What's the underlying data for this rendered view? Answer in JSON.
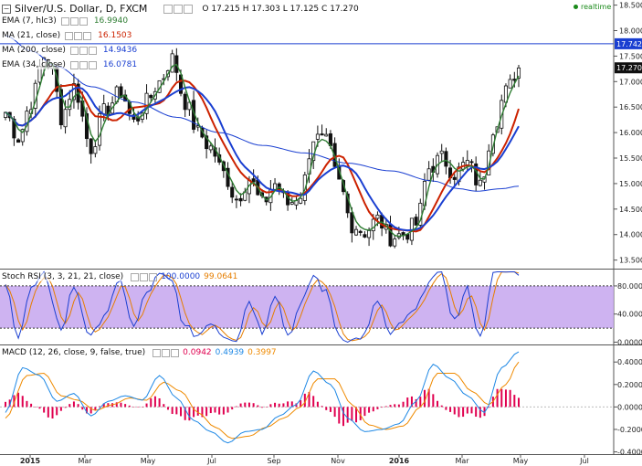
{
  "header": {
    "symbol": "Silver/U.S. Dollar, D, FXCM",
    "open_label": "O",
    "open": "17.215",
    "high_label": "H",
    "high": "17.303",
    "low_label": "L",
    "low": "17.125",
    "close_label": "C",
    "close": "17.270",
    "realtime": "realtime"
  },
  "indicators": [
    {
      "name": "EMA (7, hlc3)",
      "value": "16.9940",
      "color": "#2e7d32"
    },
    {
      "name": "MA (21, close)",
      "value": "16.1503",
      "color": "#cc2200"
    },
    {
      "name": "MA (200, close)",
      "value": "14.9436",
      "color": "#1a3fd1"
    },
    {
      "name": "EMA (34, close)",
      "value": "16.0781",
      "color": "#1a3fd1"
    }
  ],
  "price_badges": {
    "resistance": "17.742",
    "last": "17.270"
  },
  "stoch": {
    "name": "Stoch RSI (3, 3, 21, 21, close)",
    "k": "100.0000",
    "d": "99.0641",
    "k_color": "#1a3fd1",
    "d_color": "#e67e00",
    "band_color": "#c5a6ee"
  },
  "macd": {
    "name": "MACD (12, 26, close, 9, false, true)",
    "hist": "0.0942",
    "macd": "0.4939",
    "signal": "0.3997",
    "hist_color": "#e0004f",
    "macd_color": "#1e88e5",
    "signal_color": "#ef8a00"
  },
  "chart_data": {
    "type": "candlestick",
    "price_axis": {
      "ticks": [
        "18.500",
        "18.000",
        "17.500",
        "17.000",
        "16.500",
        "16.000",
        "15.500",
        "15.000",
        "14.500",
        "14.000",
        "13.500"
      ],
      "range": [
        13.35,
        18.6
      ]
    },
    "stoch_axis": {
      "ticks": [
        "80.0000",
        "40.0000",
        "0.0000"
      ],
      "range": [
        -2,
        102
      ],
      "band": [
        20,
        80
      ]
    },
    "macd_axis": {
      "ticks": [
        "0.4000",
        "0.2000",
        "0.0000",
        "-0.2000",
        "-0.4000"
      ],
      "range": [
        -0.42,
        0.54
      ]
    },
    "x_ticks": [
      "2015",
      "Mar",
      "May",
      "Jul",
      "Sep",
      "Nov",
      "2016",
      "Mar",
      "May",
      "Jul"
    ],
    "x_tick_bold": [
      "2015",
      "2016"
    ],
    "resistance_level": 17.742,
    "close_anchors": [
      [
        0,
        16.4
      ],
      [
        3,
        15.9
      ],
      [
        6,
        16.6
      ],
      [
        9,
        17.5
      ],
      [
        11,
        17.2
      ],
      [
        13,
        16.3
      ],
      [
        16,
        16.9
      ],
      [
        20,
        15.7
      ],
      [
        23,
        16.4
      ],
      [
        27,
        16.8
      ],
      [
        30,
        16.2
      ],
      [
        33,
        16.6
      ],
      [
        36,
        17.0
      ],
      [
        39,
        17.45
      ],
      [
        42,
        16.6
      ],
      [
        45,
        16.0
      ],
      [
        48,
        15.7
      ],
      [
        51,
        15.2
      ],
      [
        54,
        14.7
      ],
      [
        57,
        15.1
      ],
      [
        60,
        14.6
      ],
      [
        63,
        15.0
      ],
      [
        66,
        14.6
      ],
      [
        69,
        14.8
      ],
      [
        72,
        15.9
      ],
      [
        75,
        15.8
      ],
      [
        78,
        15.0
      ],
      [
        81,
        14.2
      ],
      [
        84,
        14.05
      ],
      [
        87,
        14.3
      ],
      [
        90,
        13.95
      ],
      [
        93,
        14.0
      ],
      [
        96,
        14.2
      ],
      [
        99,
        15.3
      ],
      [
        102,
        15.5
      ],
      [
        105,
        15.2
      ],
      [
        108,
        15.4
      ],
      [
        111,
        14.95
      ],
      [
        114,
        16.1
      ],
      [
        117,
        16.8
      ],
      [
        120,
        17.27
      ]
    ],
    "ma200_anchors": [
      [
        0,
        17.9
      ],
      [
        6,
        17.6
      ],
      [
        12,
        17.3
      ],
      [
        20,
        16.9
      ],
      [
        30,
        16.6
      ],
      [
        40,
        16.3
      ],
      [
        50,
        16.0
      ],
      [
        60,
        15.75
      ],
      [
        70,
        15.6
      ],
      [
        80,
        15.4
      ],
      [
        90,
        15.25
      ],
      [
        100,
        15.05
      ],
      [
        106,
        14.9
      ],
      [
        110,
        14.85
      ],
      [
        116,
        14.9
      ],
      [
        120,
        14.95
      ]
    ],
    "stoch_anchors": [
      [
        0,
        80
      ],
      [
        3,
        10
      ],
      [
        6,
        75
      ],
      [
        9,
        95
      ],
      [
        11,
        60
      ],
      [
        13,
        15
      ],
      [
        16,
        80
      ],
      [
        20,
        5
      ],
      [
        23,
        40
      ],
      [
        27,
        85
      ],
      [
        30,
        20
      ],
      [
        33,
        70
      ],
      [
        36,
        95
      ],
      [
        39,
        85
      ],
      [
        42,
        20
      ],
      [
        45,
        10
      ],
      [
        48,
        30
      ],
      [
        51,
        10
      ],
      [
        54,
        5
      ],
      [
        57,
        60
      ],
      [
        60,
        15
      ],
      [
        63,
        70
      ],
      [
        66,
        10
      ],
      [
        69,
        50
      ],
      [
        72,
        95
      ],
      [
        75,
        70
      ],
      [
        78,
        10
      ],
      [
        81,
        2
      ],
      [
        84,
        10
      ],
      [
        87,
        60
      ],
      [
        90,
        8
      ],
      [
        93,
        30
      ],
      [
        96,
        45
      ],
      [
        99,
        90
      ],
      [
        102,
        95
      ],
      [
        105,
        30
      ],
      [
        108,
        75
      ],
      [
        111,
        5
      ],
      [
        114,
        95
      ],
      [
        117,
        100
      ],
      [
        120,
        100
      ]
    ],
    "macd_anchors": [
      [
        0,
        -0.05
      ],
      [
        4,
        0.35
      ],
      [
        8,
        0.28
      ],
      [
        12,
        0.05
      ],
      [
        16,
        0.12
      ],
      [
        20,
        -0.08
      ],
      [
        24,
        0.05
      ],
      [
        28,
        0.1
      ],
      [
        32,
        0.06
      ],
      [
        36,
        0.28
      ],
      [
        40,
        0.08
      ],
      [
        44,
        -0.12
      ],
      [
        48,
        -0.22
      ],
      [
        52,
        -0.32
      ],
      [
        56,
        -0.22
      ],
      [
        60,
        -0.2
      ],
      [
        64,
        -0.08
      ],
      [
        68,
        0.02
      ],
      [
        72,
        0.32
      ],
      [
        76,
        0.2
      ],
      [
        80,
        -0.1
      ],
      [
        84,
        -0.22
      ],
      [
        88,
        -0.2
      ],
      [
        92,
        -0.15
      ],
      [
        96,
        0.05
      ],
      [
        100,
        0.38
      ],
      [
        104,
        0.25
      ],
      [
        108,
        0.1
      ],
      [
        112,
        -0.05
      ],
      [
        116,
        0.35
      ],
      [
        120,
        0.49
      ]
    ],
    "signal_anchors": [
      [
        0,
        -0.1
      ],
      [
        5,
        0.28
      ],
      [
        9,
        0.3
      ],
      [
        13,
        0.1
      ],
      [
        17,
        0.06
      ],
      [
        21,
        -0.03
      ],
      [
        25,
        0.02
      ],
      [
        29,
        0.08
      ],
      [
        33,
        0.06
      ],
      [
        37,
        0.22
      ],
      [
        41,
        0.14
      ],
      [
        45,
        -0.05
      ],
      [
        49,
        -0.18
      ],
      [
        53,
        -0.28
      ],
      [
        57,
        -0.26
      ],
      [
        61,
        -0.18
      ],
      [
        65,
        -0.1
      ],
      [
        69,
        0.0
      ],
      [
        73,
        0.25
      ],
      [
        77,
        0.25
      ],
      [
        81,
        0.02
      ],
      [
        85,
        -0.16
      ],
      [
        89,
        -0.2
      ],
      [
        93,
        -0.17
      ],
      [
        97,
        0.0
      ],
      [
        101,
        0.3
      ],
      [
        105,
        0.3
      ],
      [
        109,
        0.14
      ],
      [
        113,
        0.02
      ],
      [
        117,
        0.2
      ],
      [
        120,
        0.4
      ]
    ],
    "bars": 121
  }
}
